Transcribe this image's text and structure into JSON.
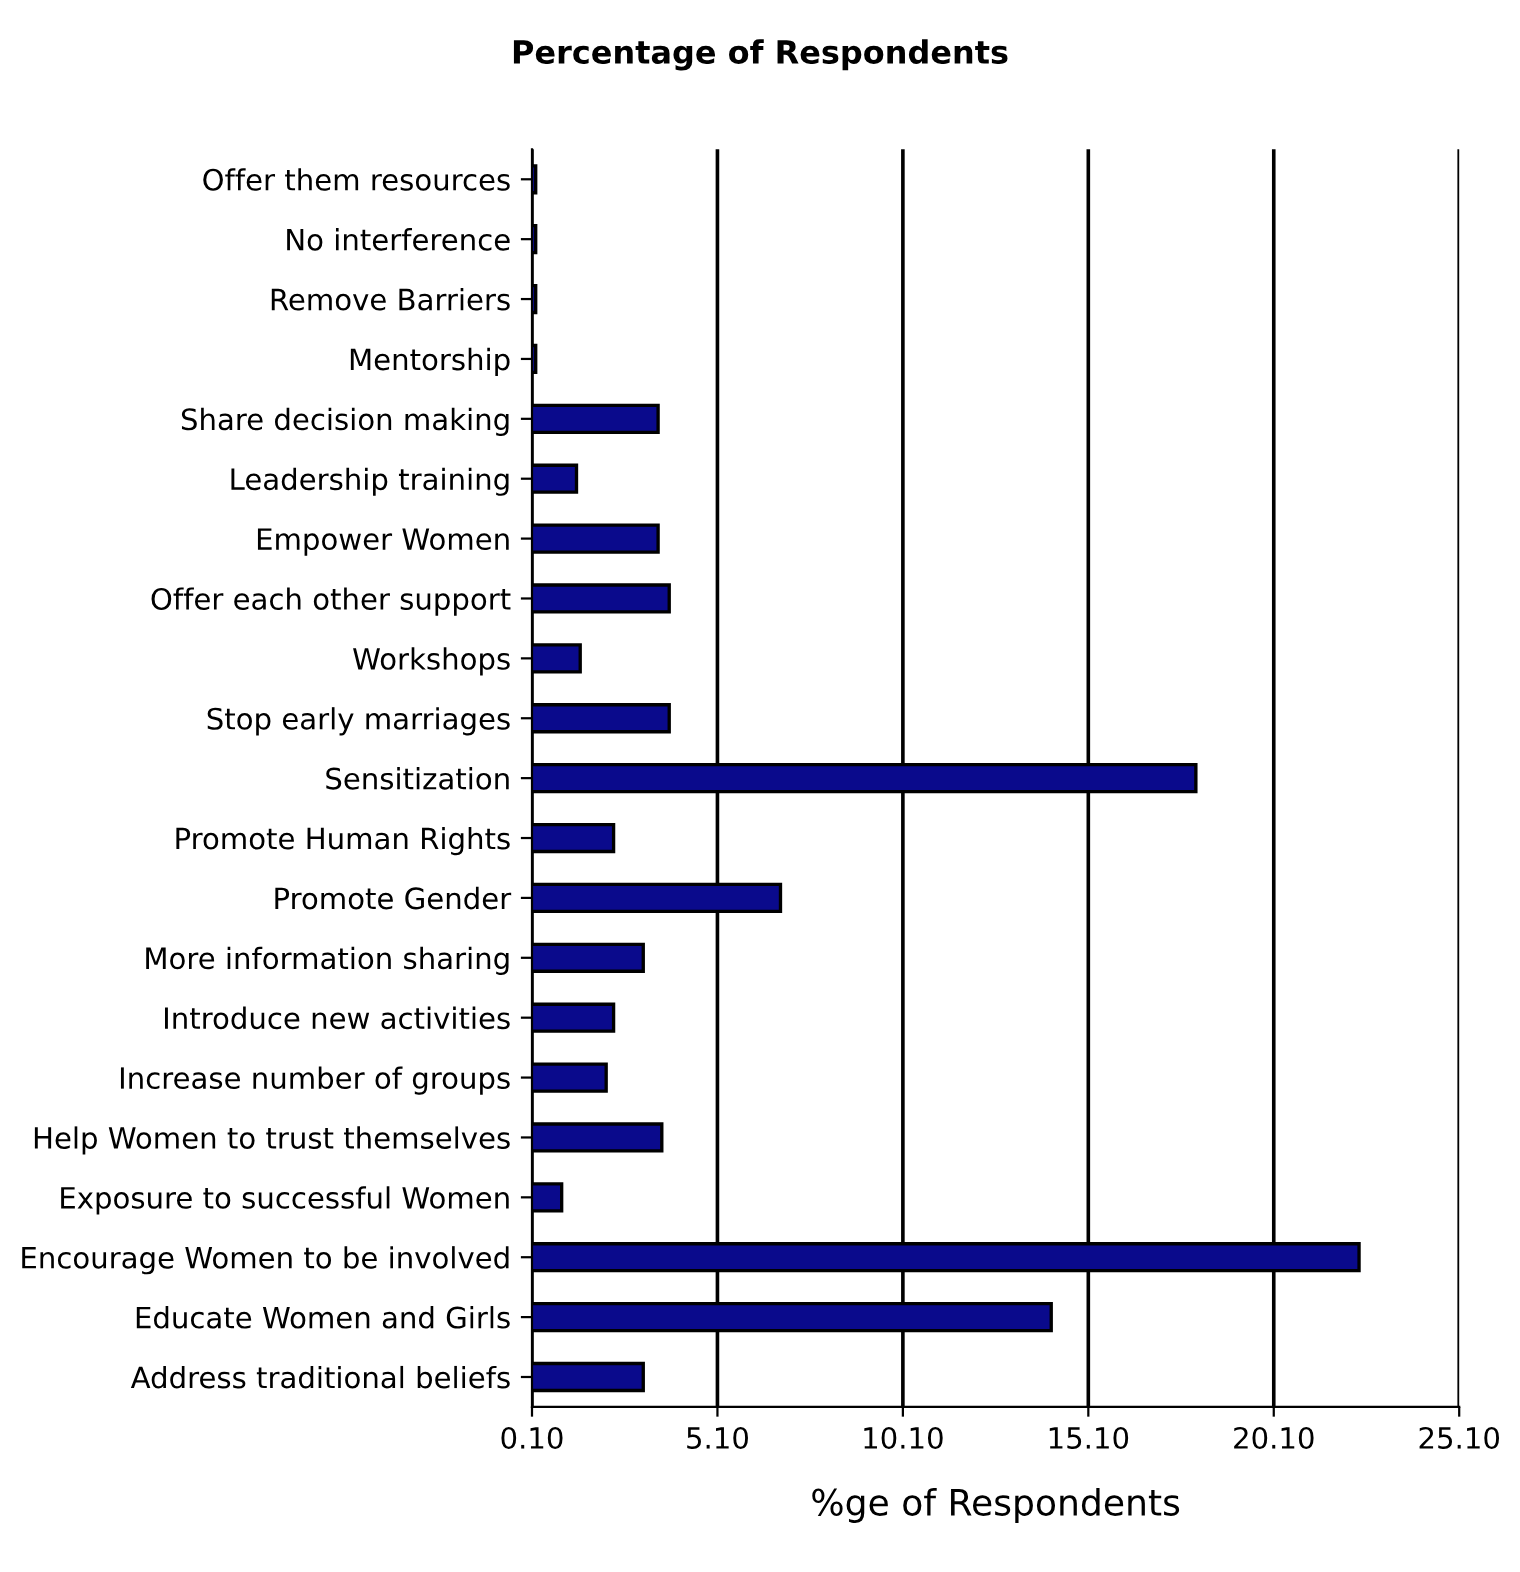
{
  "chart_data": {
    "type": "bar",
    "orientation": "horizontal",
    "title": "Percentage of Respondents",
    "xlabel": "%ge of Respondents",
    "categories": [
      "Offer them resources",
      "No interference",
      "Remove Barriers",
      "Mentorship",
      "Share decision making",
      "Leadership training",
      "Empower Women",
      "Offer each other support",
      "Workshops",
      "Stop early marriages",
      "Sensitization",
      "Promote Human Rights",
      "Promote Gender",
      "More information sharing",
      "Introduce new activities",
      "Increase number of groups",
      "Help Women to trust themselves",
      "Exposure to successful Women",
      "Encourage Women to be involved",
      "Educate Women and Girls",
      "Address traditional beliefs"
    ],
    "values": [
      0.2,
      0.2,
      0.2,
      0.2,
      3.5,
      1.3,
      3.5,
      3.8,
      1.4,
      3.8,
      18.0,
      2.3,
      6.8,
      3.1,
      2.3,
      2.1,
      3.6,
      0.9,
      22.4,
      14.1,
      3.1
    ],
    "color": "#0a0a8c",
    "xlim": [
      0.1,
      25.1
    ],
    "xticks": [
      {
        "value": 0.1,
        "label": "0.10"
      },
      {
        "value": 5.1,
        "label": "5.10"
      },
      {
        "value": 10.1,
        "label": "10.10"
      },
      {
        "value": 15.1,
        "label": "15.10"
      },
      {
        "value": 20.1,
        "label": "20.10"
      },
      {
        "value": 25.1,
        "label": "25.10"
      }
    ],
    "grid": "x"
  }
}
